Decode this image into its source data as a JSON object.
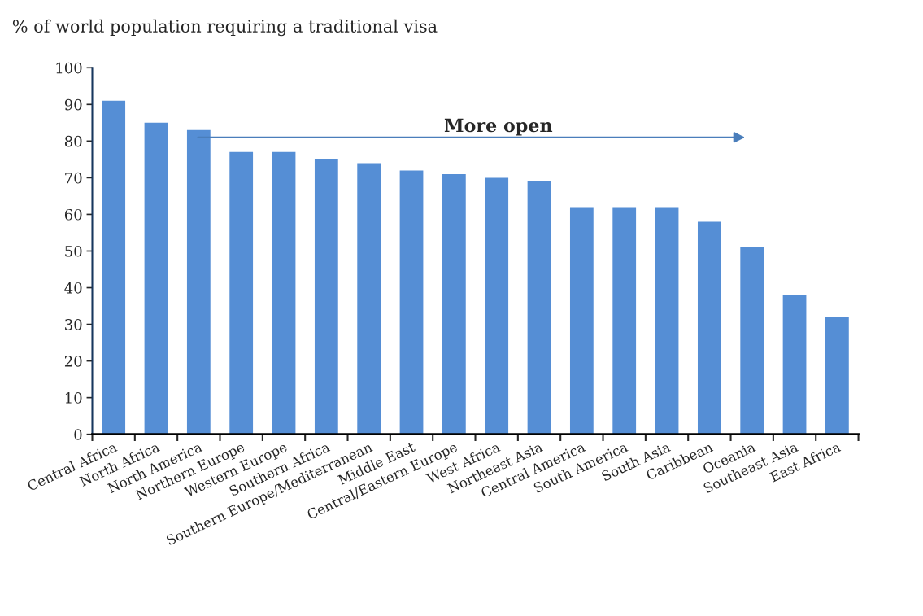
{
  "chart_data": {
    "type": "bar",
    "ylabel": "% of world population requiring a traditional visa",
    "categories": [
      "Central Africa",
      "North Africa",
      "North America",
      "Northern Europe",
      "Western Europe",
      "Southern Africa",
      "Southern Europe/Mediterranean",
      "Middle East",
      "Central/Eastern Europe",
      "West Africa",
      "Northeast Asia",
      "Central America",
      "South America",
      "South Asia",
      "Caribbean",
      "Oceania",
      "Southeast Asia",
      "East Africa"
    ],
    "values": [
      91,
      85,
      83,
      77,
      77,
      75,
      74,
      72,
      71,
      70,
      69,
      62,
      62,
      62,
      58,
      51,
      38,
      32
    ],
    "color": "#558ed5",
    "ylim": [
      0,
      100
    ],
    "yticks": [
      0,
      10,
      20,
      30,
      40,
      50,
      60,
      70,
      80,
      90,
      100
    ],
    "annotations": [
      "More open"
    ],
    "grid": false,
    "legend": false
  }
}
